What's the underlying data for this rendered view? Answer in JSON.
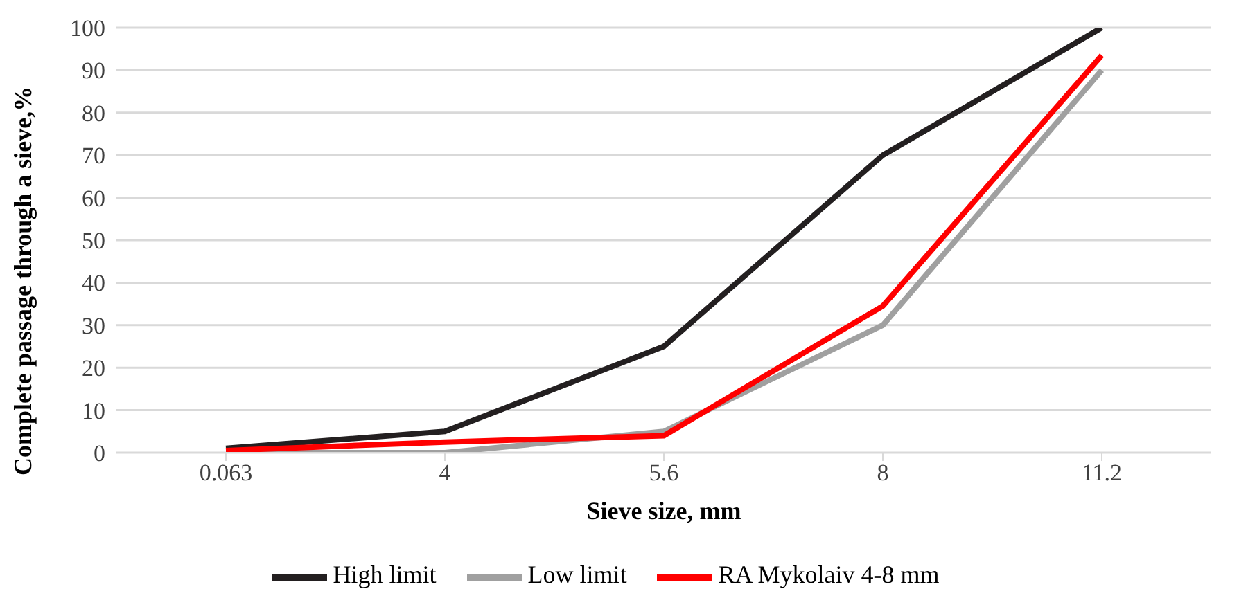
{
  "chart_data": {
    "type": "line",
    "xlabel": "Sieve size, mm",
    "ylabel": "Complete passage through a sieve,%",
    "categories": [
      "0.063",
      "4",
      "5.6",
      "8",
      "11.2"
    ],
    "series": [
      {
        "name": "High limit",
        "color": "#231f20",
        "values": [
          1,
          5,
          25,
          70,
          100
        ]
      },
      {
        "name": "Low limit",
        "color": "#a0a0a0",
        "values": [
          0,
          0,
          5,
          30,
          90
        ]
      },
      {
        "name": "RA Mykolaiv 4-8 mm",
        "color": "#ff0000",
        "values": [
          0.5,
          2.5,
          4,
          34.5,
          93.5
        ]
      }
    ],
    "ylim": [
      0,
      100
    ],
    "yticks": [
      0,
      10,
      20,
      30,
      40,
      50,
      60,
      70,
      80,
      90,
      100
    ],
    "grid": "y",
    "legend": "bottom",
    "marker": "none",
    "line_style": "solid"
  }
}
